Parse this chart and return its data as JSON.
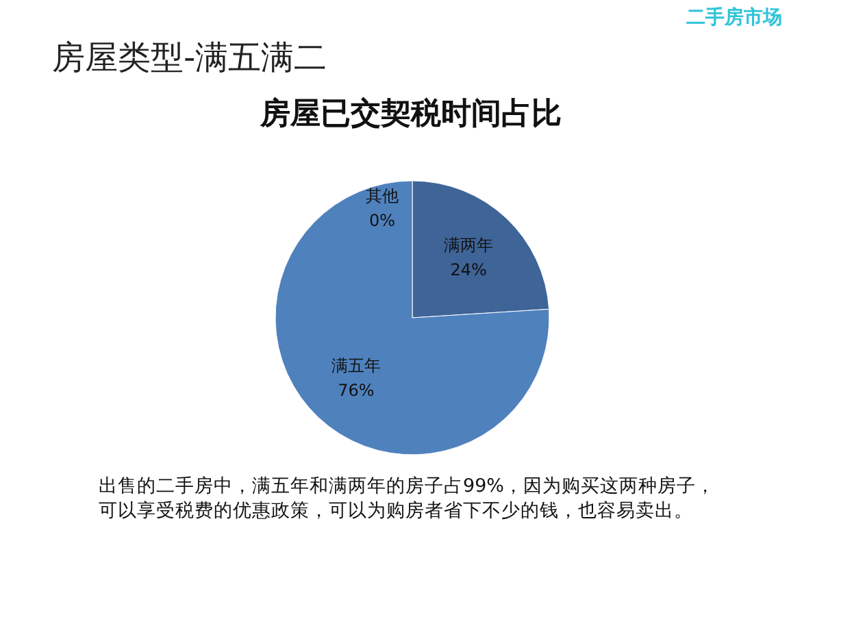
{
  "chart_data": {
    "type": "pie",
    "title": "房屋已交契税时间占比",
    "categories": [
      "其他",
      "满两年",
      "满五年"
    ],
    "values": [
      0,
      24,
      76
    ],
    "colors": [
      "#4f81bd",
      "#3e6498",
      "#4f81bd"
    ],
    "value_labels": [
      "0%",
      "24%",
      "76%"
    ],
    "annotations": [
      "房屋类型-满五满二",
      "二手房市场",
      "出售的二手房中，满五年和满两年的房子占99%，因为购买这两种房子，可以享受税费的优惠政策，可以为购房者省下不少的钱，也容易卖出。"
    ]
  }
}
